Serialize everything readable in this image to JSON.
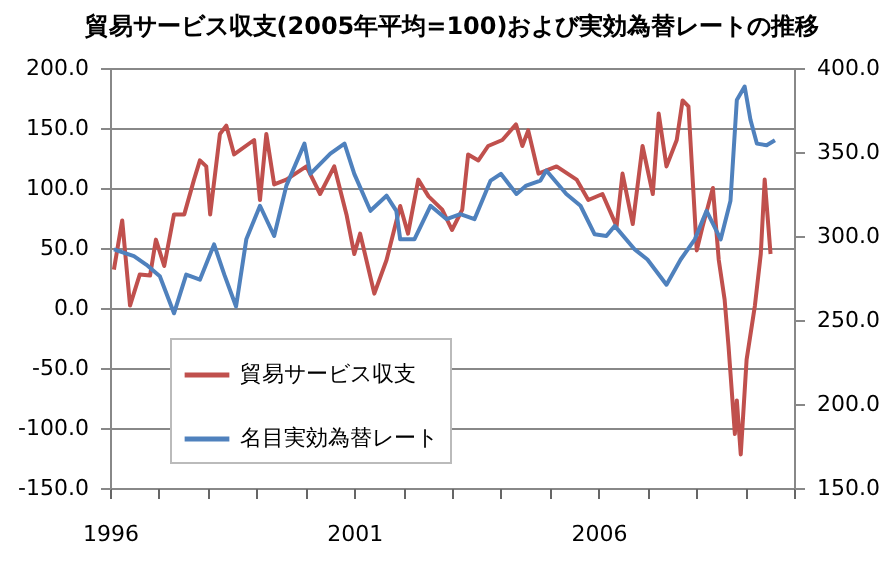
{
  "chart_data": {
    "type": "line",
    "title": "貿易サービス収支(2005年平均=100)および実効為替レートの推移",
    "xlim": [
      1996,
      2010
    ],
    "xticks": [
      {
        "value": 1996,
        "label": "1996"
      },
      {
        "value": 1997,
        "label": null
      },
      {
        "value": 1998,
        "label": null
      },
      {
        "value": 1999,
        "label": null
      },
      {
        "value": 2000,
        "label": null
      },
      {
        "value": 2001,
        "label": "2001"
      },
      {
        "value": 2002,
        "label": null
      },
      {
        "value": 2003,
        "label": null
      },
      {
        "value": 2004,
        "label": null
      },
      {
        "value": 2005,
        "label": null
      },
      {
        "value": 2006,
        "label": "2006"
      },
      {
        "value": 2007,
        "label": null
      },
      {
        "value": 2008,
        "label": null
      },
      {
        "value": 2009,
        "label": null
      },
      {
        "value": 2010,
        "label": null
      }
    ],
    "ylim": [
      -150,
      200
    ],
    "yticks": [
      {
        "value": -150,
        "label": "-150.0"
      },
      {
        "value": -100,
        "label": "-100.0"
      },
      {
        "value": -50,
        "label": "-50.0"
      },
      {
        "value": 0,
        "label": "0.0"
      },
      {
        "value": 50,
        "label": "50.0"
      },
      {
        "value": 100,
        "label": "100.0"
      },
      {
        "value": 150,
        "label": "150.0"
      },
      {
        "value": 200,
        "label": "200.0"
      }
    ],
    "y2lim": [
      150,
      400
    ],
    "y2ticks": [
      {
        "value": 150,
        "label": "150.0"
      },
      {
        "value": 200,
        "label": "200.0"
      },
      {
        "value": 250,
        "label": "250.0"
      },
      {
        "value": 300,
        "label": "300.0"
      },
      {
        "value": 350,
        "label": "350.0"
      },
      {
        "value": 400,
        "label": "400.0"
      }
    ],
    "grid": "y",
    "legend": "bottom left",
    "marker": "none",
    "line_style": "solid",
    "series": [
      {
        "name": "貿易サービス収支",
        "color": "#c0504d",
        "x": [
          1996.08,
          1996.25,
          1996.41,
          1996.61,
          1996.82,
          1996.94,
          1997.11,
          1997.31,
          1997.52,
          1997.72,
          1997.84,
          1997.97,
          1998.05,
          1998.25,
          1998.38,
          1998.54,
          1998.95,
          1999.07,
          1999.2,
          1999.36,
          1999.61,
          2000.02,
          2000.3,
          2000.59,
          2000.84,
          2001.0,
          2001.12,
          2001.41,
          2001.66,
          2001.94,
          2002.1,
          2002.31,
          2002.52,
          2002.8,
          2003.0,
          2003.21,
          2003.33,
          2003.54,
          2003.74,
          2004.03,
          2004.31,
          2004.44,
          2004.56,
          2004.77,
          2005.14,
          2005.55,
          2005.79,
          2006.08,
          2006.37,
          2006.49,
          2006.7,
          2006.9,
          2007.11,
          2007.23,
          2007.39,
          2007.6,
          2007.72,
          2007.84,
          2008.01,
          2008.13,
          2008.34,
          2008.46,
          2008.58,
          2008.66,
          2008.79,
          2008.83,
          2008.91,
          2009.03,
          2009.2,
          2009.32,
          2009.4,
          2009.52
        ],
        "values": [
          32,
          73,
          2,
          28,
          27,
          57,
          35,
          78,
          78,
          107,
          123,
          118,
          78,
          145,
          152,
          128,
          140,
          90,
          145,
          103,
          107,
          118,
          95,
          118,
          78,
          45,
          62,
          12,
          40,
          85,
          62,
          107,
          93,
          82,
          65,
          82,
          128,
          123,
          135,
          140,
          153,
          135,
          148,
          112,
          118,
          107,
          90,
          95,
          68,
          112,
          70,
          135,
          95,
          162,
          118,
          140,
          173,
          168,
          48,
          68,
          100,
          40,
          7,
          -32,
          -105,
          -77,
          -122,
          -43,
          2,
          45,
          107,
          45
        ]
      },
      {
        "name": "名目実効為替レート",
        "color": "#4f81bd",
        "axis": "y2",
        "x": [
          1996.08,
          1996.49,
          1996.74,
          1997.02,
          1997.31,
          1997.56,
          1997.84,
          1998.13,
          1998.34,
          1998.58,
          1998.79,
          1999.07,
          1999.36,
          1999.61,
          1999.98,
          2000.1,
          2000.51,
          2000.8,
          2001.0,
          2001.33,
          2001.66,
          2001.86,
          2001.94,
          2002.23,
          2002.56,
          2002.89,
          2003.17,
          2003.46,
          2003.79,
          2004.0,
          2004.32,
          2004.52,
          2004.81,
          2004.93,
          2005.34,
          2005.63,
          2005.92,
          2006.16,
          2006.33,
          2006.74,
          2007.0,
          2007.39,
          2007.68,
          2007.97,
          2008.21,
          2008.5,
          2008.7,
          2008.83,
          2008.99,
          2009.11,
          2009.24,
          2009.44,
          2009.61
        ],
        "values": [
          292,
          288,
          283,
          276,
          254,
          277,
          274,
          295,
          277,
          258,
          298,
          318,
          300,
          330,
          355,
          337,
          349,
          355,
          337,
          315,
          324,
          315,
          298,
          298,
          318,
          310,
          313,
          310,
          333,
          337,
          325,
          330,
          333,
          339,
          325,
          318,
          301,
          300,
          306,
          292,
          286,
          271,
          286,
          298,
          315,
          298,
          321,
          381,
          389,
          369,
          355,
          354,
          357
        ]
      }
    ]
  }
}
